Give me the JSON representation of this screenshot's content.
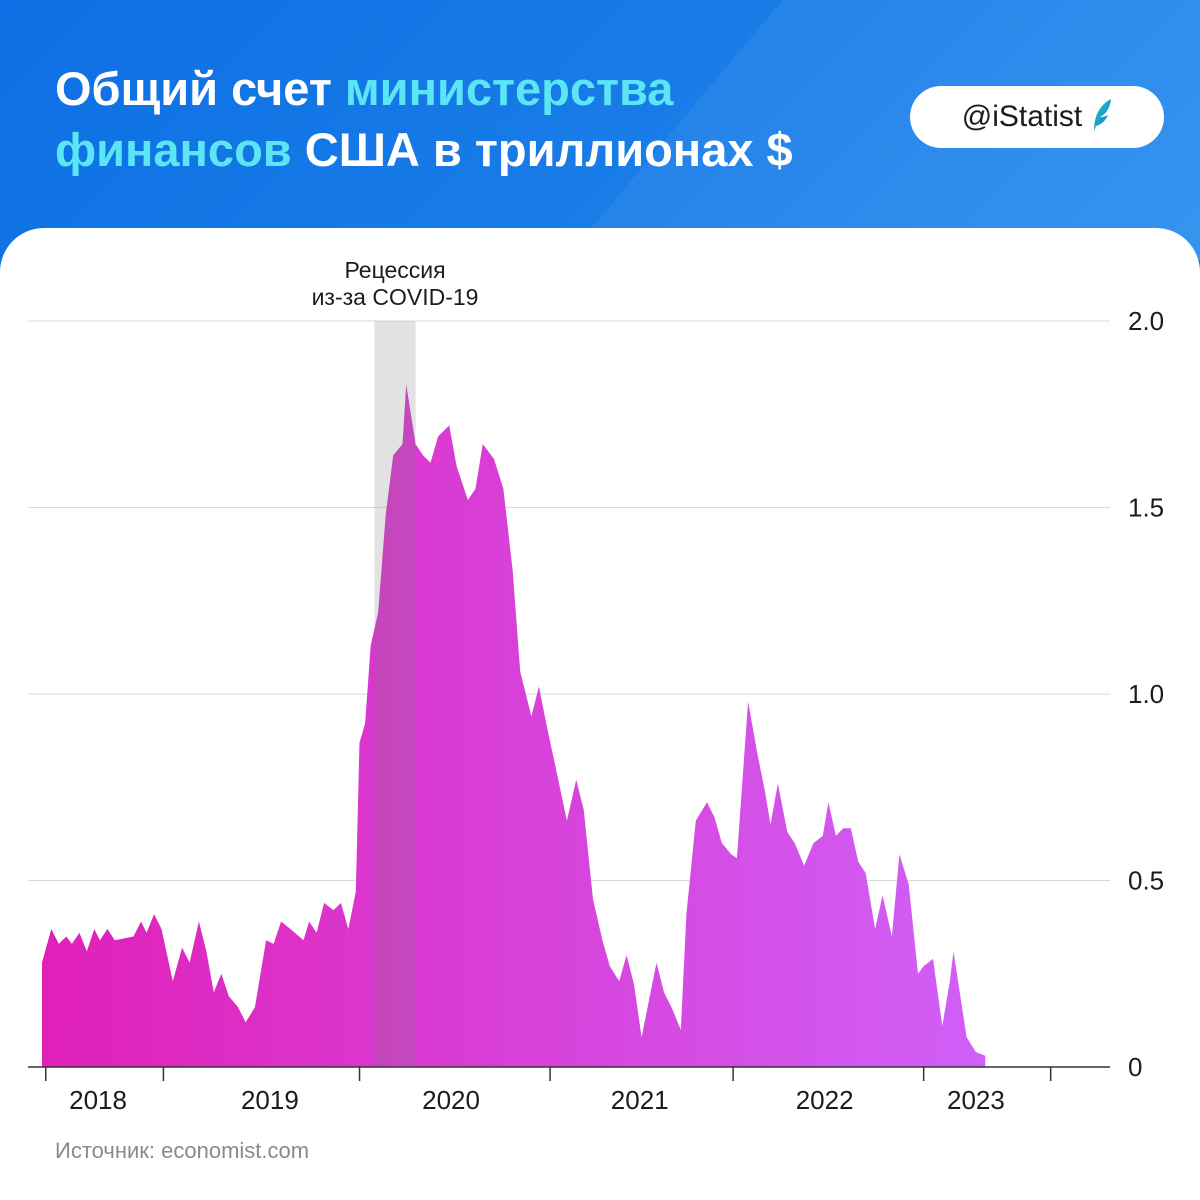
{
  "header": {
    "title_parts": [
      {
        "text": "Общий счет ",
        "highlight": false
      },
      {
        "text": "министерства",
        "highlight": true
      },
      {
        "text": "финансов",
        "highlight": true
      },
      {
        "text": " США в триллионах $",
        "highlight": false
      }
    ],
    "badge": "@iStatist",
    "logo_icon": "feather-icon",
    "colors": {
      "background": "#1473e0",
      "highlight": "#5ce6f5",
      "text": "#ffffff"
    }
  },
  "source": "Источник: economist.com",
  "chart_data": {
    "type": "area",
    "title": "Общий счет министерства финансов США в триллионах $",
    "xlabel": "",
    "ylabel": "",
    "ylim": [
      0,
      2.0
    ],
    "yticks": [
      {
        "value": 0,
        "label": "0"
      },
      {
        "value": 0.5,
        "label": "0.5"
      },
      {
        "value": 1.0,
        "label": "1.0"
      },
      {
        "value": 1.5,
        "label": "1.5"
      },
      {
        "value": 2.0,
        "label": "2.0"
      }
    ],
    "xlim": [
      2018.0,
      2023.45
    ],
    "year_labels": [
      {
        "x": 2018.3,
        "label": "2018"
      },
      {
        "x": 2019.22,
        "label": "2019"
      },
      {
        "x": 2020.19,
        "label": "2020"
      },
      {
        "x": 2021.2,
        "label": "2021"
      },
      {
        "x": 2022.19,
        "label": "2022"
      },
      {
        "x": 2023.0,
        "label": "2023"
      }
    ],
    "x_ticks": [
      2018.02,
      2018.65,
      2019.7,
      2020.72,
      2021.7,
      2022.72,
      2023.4
    ],
    "grid": true,
    "recession_band": {
      "x0": 2019.78,
      "x1": 2020.0,
      "label_line1": "Рецессия",
      "label_line2": "из-за COVID-19"
    },
    "gradient": [
      "#e020b8",
      "#d060f8"
    ],
    "series": [
      {
        "points": [
          [
            2018.0,
            0.28
          ],
          [
            2018.05,
            0.37
          ],
          [
            2018.09,
            0.33
          ],
          [
            2018.13,
            0.35
          ],
          [
            2018.16,
            0.33
          ],
          [
            2018.2,
            0.36
          ],
          [
            2018.24,
            0.31
          ],
          [
            2018.28,
            0.37
          ],
          [
            2018.31,
            0.34
          ],
          [
            2018.35,
            0.37
          ],
          [
            2018.39,
            0.34
          ],
          [
            2018.49,
            0.35
          ],
          [
            2018.53,
            0.39
          ],
          [
            2018.56,
            0.36
          ],
          [
            2018.6,
            0.41
          ],
          [
            2018.64,
            0.37
          ],
          [
            2018.7,
            0.23
          ],
          [
            2018.75,
            0.32
          ],
          [
            2018.79,
            0.28
          ],
          [
            2018.84,
            0.39
          ],
          [
            2018.88,
            0.31
          ],
          [
            2018.92,
            0.2
          ],
          [
            2018.96,
            0.25
          ],
          [
            2019.0,
            0.19
          ],
          [
            2019.05,
            0.16
          ],
          [
            2019.09,
            0.12
          ],
          [
            2019.14,
            0.16
          ],
          [
            2019.2,
            0.34
          ],
          [
            2019.24,
            0.33
          ],
          [
            2019.28,
            0.39
          ],
          [
            2019.33,
            0.37
          ],
          [
            2019.4,
            0.34
          ],
          [
            2019.43,
            0.39
          ],
          [
            2019.47,
            0.36
          ],
          [
            2019.51,
            0.44
          ],
          [
            2019.56,
            0.42
          ],
          [
            2019.6,
            0.44
          ],
          [
            2019.64,
            0.37
          ],
          [
            2019.68,
            0.47
          ],
          [
            2019.7,
            0.87
          ],
          [
            2019.73,
            0.92
          ],
          [
            2019.76,
            1.13
          ],
          [
            2019.8,
            1.22
          ],
          [
            2019.84,
            1.48
          ],
          [
            2019.88,
            1.64
          ],
          [
            2019.93,
            1.67
          ],
          [
            2019.95,
            1.83
          ],
          [
            2020.0,
            1.67
          ],
          [
            2020.04,
            1.64
          ],
          [
            2020.08,
            1.62
          ],
          [
            2020.12,
            1.69
          ],
          [
            2020.18,
            1.72
          ],
          [
            2020.22,
            1.61
          ],
          [
            2020.28,
            1.52
          ],
          [
            2020.32,
            1.55
          ],
          [
            2020.36,
            1.67
          ],
          [
            2020.42,
            1.63
          ],
          [
            2020.47,
            1.55
          ],
          [
            2020.52,
            1.33
          ],
          [
            2020.56,
            1.06
          ],
          [
            2020.62,
            0.94
          ],
          [
            2020.66,
            1.02
          ],
          [
            2020.7,
            0.92
          ],
          [
            2020.76,
            0.78
          ],
          [
            2020.81,
            0.66
          ],
          [
            2020.86,
            0.77
          ],
          [
            2020.9,
            0.69
          ],
          [
            2020.95,
            0.45
          ],
          [
            2021.0,
            0.34
          ],
          [
            2021.04,
            0.27
          ],
          [
            2021.09,
            0.23
          ],
          [
            2021.13,
            0.3
          ],
          [
            2021.17,
            0.22
          ],
          [
            2021.21,
            0.08
          ],
          [
            2021.25,
            0.18
          ],
          [
            2021.29,
            0.28
          ],
          [
            2021.33,
            0.2
          ],
          [
            2021.37,
            0.16
          ],
          [
            2021.42,
            0.1
          ],
          [
            2021.45,
            0.41
          ],
          [
            2021.5,
            0.66
          ],
          [
            2021.56,
            0.71
          ],
          [
            2021.6,
            0.67
          ],
          [
            2021.64,
            0.6
          ],
          [
            2021.69,
            0.57
          ],
          [
            2021.72,
            0.56
          ],
          [
            2021.78,
            0.98
          ],
          [
            2021.83,
            0.84
          ],
          [
            2021.87,
            0.74
          ],
          [
            2021.9,
            0.65
          ],
          [
            2021.94,
            0.76
          ],
          [
            2021.99,
            0.63
          ],
          [
            2022.03,
            0.6
          ],
          [
            2022.08,
            0.54
          ],
          [
            2022.13,
            0.6
          ],
          [
            2022.18,
            0.62
          ],
          [
            2022.21,
            0.71
          ],
          [
            2022.25,
            0.62
          ],
          [
            2022.29,
            0.64
          ],
          [
            2022.33,
            0.64
          ],
          [
            2022.37,
            0.55
          ],
          [
            2022.41,
            0.52
          ],
          [
            2022.46,
            0.37
          ],
          [
            2022.5,
            0.46
          ],
          [
            2022.55,
            0.35
          ],
          [
            2022.59,
            0.57
          ],
          [
            2022.64,
            0.49
          ],
          [
            2022.69,
            0.25
          ],
          [
            2022.72,
            0.27
          ],
          [
            2022.77,
            0.29
          ],
          [
            2022.82,
            0.11
          ],
          [
            2022.86,
            0.23
          ],
          [
            2022.88,
            0.31
          ],
          [
            2022.95,
            0.08
          ],
          [
            2023.0,
            0.04
          ],
          [
            2023.05,
            0.03
          ]
        ]
      }
    ]
  }
}
